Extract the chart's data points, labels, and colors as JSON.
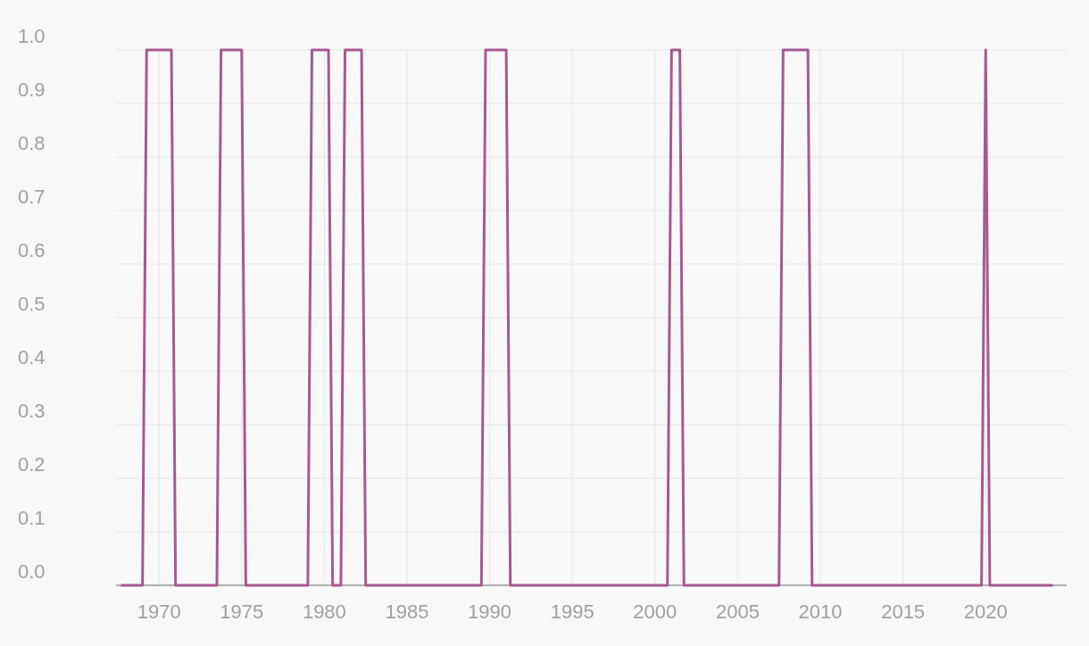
{
  "chart_data": {
    "type": "line",
    "xlim": [
      1967.4,
      2024.9
    ],
    "ylim": [
      0,
      1
    ],
    "xticks": [
      1970,
      1975,
      1980,
      1985,
      1990,
      1995,
      2000,
      2005,
      2010,
      2015,
      2020
    ],
    "yticks": [
      {
        "value": 0,
        "label": "0.0"
      },
      0.1,
      0.2,
      0.3,
      0.4,
      0.5,
      0.6,
      0.7,
      0.8,
      0.9,
      {
        "value": 1,
        "label": "1.0"
      }
    ],
    "grid": true,
    "marker": "none",
    "line_style": "solid",
    "series": [
      {
        "color": "#a65a8e",
        "x": [
          1967.75,
          1969.0,
          1969.25,
          1970.75,
          1971.0,
          1973.5,
          1973.75,
          1975.0,
          1975.25,
          1979.0,
          1979.25,
          1980.25,
          1980.5,
          1981.0,
          1981.25,
          1982.25,
          1982.5,
          1989.5,
          1989.75,
          1991.0,
          1991.25,
          2000.75,
          2001.0,
          2001.5,
          2001.75,
          2007.5,
          2007.75,
          2009.25,
          2009.5,
          2019.75,
          2020.0,
          2020.25,
          2024.0
        ],
        "values": [
          0,
          0,
          1,
          1,
          0,
          0,
          1,
          1,
          0,
          0,
          1,
          1,
          0,
          0,
          1,
          1,
          0,
          0,
          1,
          1,
          0,
          0,
          1,
          1,
          0,
          0,
          1,
          1,
          0,
          0,
          1,
          0,
          0
        ]
      }
    ]
  }
}
